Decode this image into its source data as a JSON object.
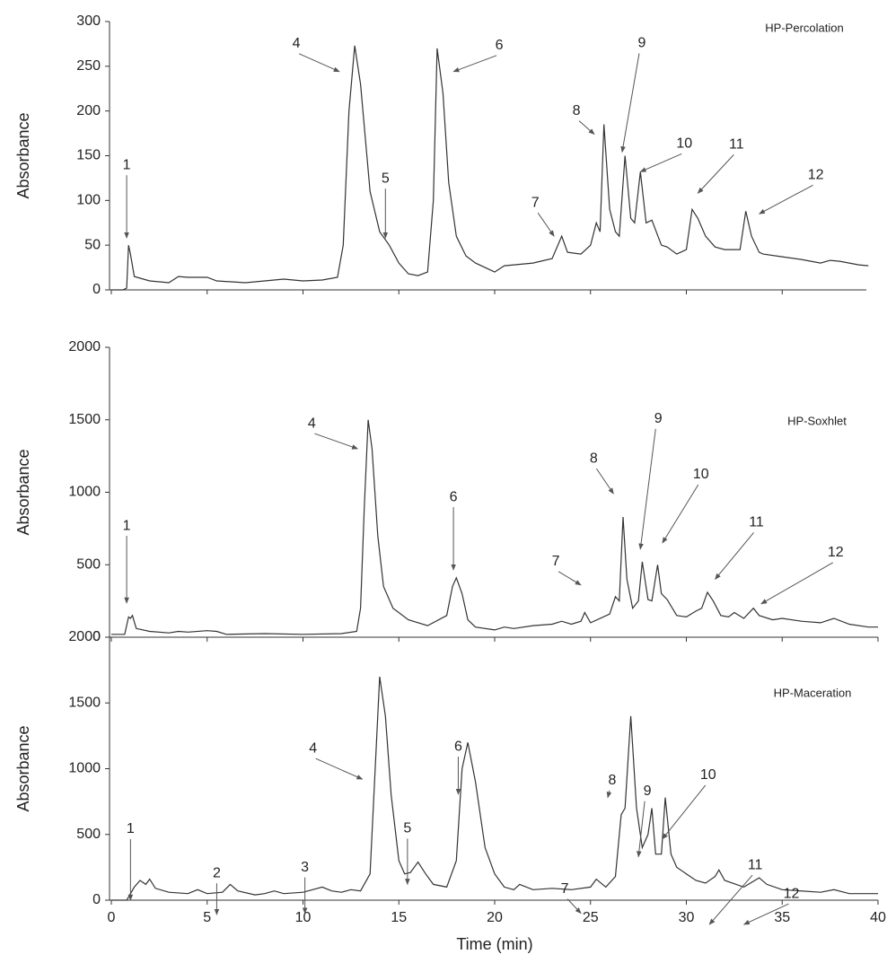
{
  "chart_data": [
    {
      "type": "line",
      "title": "HP-Percolation",
      "ylabel": "Absorbance",
      "xlim": [
        0,
        40
      ],
      "ylim": [
        0,
        300
      ],
      "yticks": [
        0,
        50,
        100,
        150,
        200,
        250,
        300
      ],
      "xticks": [
        0,
        5,
        10,
        15,
        20,
        25,
        30,
        35,
        40
      ],
      "color": "#333333",
      "x": [
        0,
        0.6,
        0.8,
        0.9,
        1.0,
        1.2,
        2,
        3,
        3.5,
        4,
        5,
        5.5,
        7,
        8,
        9,
        10,
        11,
        11.8,
        12.1,
        12.4,
        12.7,
        13,
        13.5,
        14,
        14.5,
        15,
        15.5,
        16,
        16.5,
        16.8,
        17,
        17.3,
        17.6,
        18,
        18.5,
        19,
        19.5,
        20,
        20.5,
        21,
        22,
        23,
        23.5,
        23.8,
        24.5,
        25,
        25.3,
        25.5,
        25.7,
        26,
        26.3,
        26.5,
        26.8,
        27.1,
        27.3,
        27.6,
        27.9,
        28.2,
        28.7,
        29,
        29.5,
        30,
        30.3,
        30.6,
        31,
        31.5,
        32,
        32.8,
        33.1,
        33.4,
        33.8,
        34,
        35,
        36,
        37,
        37.5,
        38,
        39,
        39.5
      ],
      "values": [
        0,
        0,
        2,
        50,
        40,
        15,
        10,
        8,
        15,
        14,
        14,
        10,
        8,
        10,
        12,
        10,
        11,
        14,
        50,
        200,
        273,
        230,
        110,
        65,
        50,
        30,
        18,
        16,
        20,
        100,
        270,
        220,
        120,
        60,
        38,
        30,
        25,
        20,
        27,
        28,
        30,
        35,
        60,
        42,
        40,
        50,
        75,
        65,
        185,
        90,
        65,
        60,
        150,
        80,
        75,
        132,
        75,
        78,
        50,
        48,
        40,
        45,
        90,
        80,
        60,
        48,
        45,
        45,
        88,
        60,
        42,
        40,
        37,
        34,
        30,
        33,
        32,
        28,
        27
      ],
      "annotations": [
        {
          "label": "1",
          "x": 0.8,
          "y": 58
        },
        {
          "label": "4",
          "x": 11.9,
          "y": 244
        },
        {
          "label": "5",
          "x": 14.3,
          "y": 58
        },
        {
          "label": "6",
          "x": 17.85,
          "y": 244
        },
        {
          "label": "7",
          "x": 23.1,
          "y": 60
        },
        {
          "label": "8",
          "x": 25.2,
          "y": 174
        },
        {
          "label": "9",
          "x": 26.65,
          "y": 154
        },
        {
          "label": "10",
          "x": 27.6,
          "y": 132
        },
        {
          "label": "11",
          "x": 30.6,
          "y": 108
        },
        {
          "label": "12",
          "x": 33.8,
          "y": 85
        }
      ]
    },
    {
      "type": "line",
      "title": "HP-Soxhlet",
      "ylabel": "Absorbance",
      "xlim": [
        0,
        40
      ],
      "ylim": [
        0,
        2000
      ],
      "yticks": [
        0,
        500,
        1000,
        1500,
        2000
      ],
      "xticks": [
        0,
        5,
        10,
        15,
        20,
        25,
        30,
        35,
        40
      ],
      "color": "#333333",
      "x": [
        0,
        0.7,
        0.9,
        1.0,
        1.1,
        1.3,
        2,
        3,
        3.5,
        4,
        5,
        5.5,
        6,
        8,
        10,
        12,
        12.8,
        13,
        13.2,
        13.4,
        13.6,
        13.9,
        14.2,
        14.7,
        15.5,
        16.5,
        17.5,
        17.8,
        18,
        18.3,
        18.6,
        19,
        20,
        20.5,
        21,
        22,
        23,
        23.5,
        24,
        24.5,
        24.7,
        25,
        26,
        26.3,
        26.5,
        26.7,
        26.9,
        27.2,
        27.5,
        27.7,
        28,
        28.2,
        28.5,
        28.7,
        29,
        29.5,
        30,
        30.5,
        30.8,
        31.1,
        31.4,
        31.8,
        32.2,
        32.5,
        33,
        33.5,
        33.8,
        34.5,
        35,
        36,
        37,
        37.7,
        38.5,
        39.5,
        40
      ],
      "values": [
        20,
        20,
        140,
        130,
        150,
        60,
        40,
        30,
        40,
        35,
        45,
        40,
        20,
        25,
        20,
        25,
        40,
        200,
        900,
        1500,
        1300,
        700,
        350,
        200,
        120,
        80,
        150,
        350,
        410,
        300,
        120,
        70,
        50,
        70,
        60,
        80,
        90,
        110,
        90,
        110,
        170,
        100,
        160,
        280,
        250,
        830,
        400,
        200,
        250,
        520,
        260,
        250,
        500,
        300,
        260,
        150,
        140,
        180,
        200,
        310,
        250,
        150,
        140,
        170,
        130,
        200,
        150,
        120,
        130,
        110,
        100,
        130,
        90,
        70,
        70
      ],
      "annotations": [
        {
          "label": "1",
          "x": 0.8,
          "y": 235
        },
        {
          "label": "4",
          "x": 12.85,
          "y": 1300
        },
        {
          "label": "6",
          "x": 17.85,
          "y": 464
        },
        {
          "label": "7",
          "x": 24.5,
          "y": 360
        },
        {
          "label": "8",
          "x": 26.2,
          "y": 990
        },
        {
          "label": "9",
          "x": 27.6,
          "y": 607
        },
        {
          "label": "10",
          "x": 28.75,
          "y": 650
        },
        {
          "label": "11",
          "x": 31.5,
          "y": 400
        },
        {
          "label": "12",
          "x": 33.9,
          "y": 230
        }
      ]
    },
    {
      "type": "line",
      "title": "HP-Maceration",
      "ylabel": "Absorbance",
      "xlabel": "Time (min)",
      "xlim": [
        0,
        40
      ],
      "ylim": [
        0,
        2000
      ],
      "yticks": [
        0,
        500,
        1000,
        1500,
        2000
      ],
      "xticks": [
        0,
        5,
        10,
        15,
        20,
        25,
        30,
        35,
        40
      ],
      "color": "#333333",
      "x": [
        0,
        0.8,
        1.2,
        1.5,
        1.8,
        2,
        2.3,
        3,
        4,
        4.5,
        5,
        5.8,
        6.2,
        6.6,
        7.5,
        8,
        8.5,
        9,
        10,
        10.5,
        11,
        11.5,
        12,
        12.5,
        13,
        13.5,
        14,
        14.3,
        14.6,
        15,
        15.3,
        15.6,
        16,
        16.4,
        16.8,
        17.5,
        18,
        18.3,
        18.6,
        19,
        19.5,
        20,
        20.5,
        21,
        21.3,
        22,
        23,
        24,
        25,
        25.3,
        25.8,
        26.3,
        26.6,
        26.8,
        27.1,
        27.4,
        27.7,
        28,
        28.2,
        28.4,
        28.7,
        28.9,
        29.2,
        29.5,
        30,
        30.5,
        31,
        31.5,
        31.7,
        32,
        33,
        33.8,
        34.2,
        35,
        37,
        37.7,
        38.5,
        40
      ],
      "values": [
        0,
        0,
        100,
        150,
        120,
        160,
        90,
        60,
        50,
        80,
        50,
        60,
        120,
        70,
        40,
        50,
        70,
        50,
        60,
        80,
        100,
        70,
        60,
        80,
        70,
        200,
        1700,
        1400,
        800,
        300,
        200,
        210,
        290,
        200,
        120,
        100,
        300,
        1000,
        1200,
        900,
        400,
        200,
        100,
        80,
        120,
        80,
        90,
        80,
        100,
        160,
        100,
        180,
        650,
        700,
        1400,
        700,
        400,
        500,
        700,
        350,
        350,
        780,
        350,
        250,
        200,
        150,
        130,
        180,
        230,
        150,
        100,
        170,
        120,
        80,
        60,
        80,
        50,
        50
      ],
      "annotations": [
        {
          "label": "1",
          "x": 1.0,
          "y": 0
        },
        {
          "label": "2",
          "x": 5.5,
          "y": -110
        },
        {
          "label": "3",
          "x": 10.1,
          "y": -100
        },
        {
          "label": "4",
          "x": 13.1,
          "y": 920
        },
        {
          "label": "5",
          "x": 15.45,
          "y": 120
        },
        {
          "label": "6",
          "x": 18.1,
          "y": 805
        },
        {
          "label": "7",
          "x": 24.5,
          "y": -100
        },
        {
          "label": "8",
          "x": 25.9,
          "y": 780
        },
        {
          "label": "9",
          "x": 27.5,
          "y": 330
        },
        {
          "label": "10",
          "x": 28.75,
          "y": 465
        },
        {
          "label": "11",
          "x": 31.2,
          "y": -185
        },
        {
          "label": "12",
          "x": 33,
          "y": -185
        }
      ]
    }
  ]
}
